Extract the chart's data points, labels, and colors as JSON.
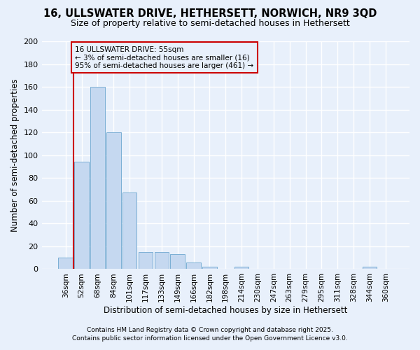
{
  "title": "16, ULLSWATER DRIVE, HETHERSETT, NORWICH, NR9 3QD",
  "subtitle": "Size of property relative to semi-detached houses in Hethersett",
  "xlabel": "Distribution of semi-detached houses by size in Hethersett",
  "ylabel": "Number of semi-detached properties",
  "footnote1": "Contains HM Land Registry data © Crown copyright and database right 2025.",
  "footnote2": "Contains public sector information licensed under the Open Government Licence v3.0.",
  "bar_labels": [
    "36sqm",
    "52sqm",
    "68sqm",
    "84sqm",
    "101sqm",
    "117sqm",
    "133sqm",
    "149sqm",
    "166sqm",
    "182sqm",
    "198sqm",
    "214sqm",
    "230sqm",
    "247sqm",
    "263sqm",
    "279sqm",
    "295sqm",
    "311sqm",
    "328sqm",
    "344sqm",
    "360sqm"
  ],
  "bar_values": [
    10,
    94,
    160,
    120,
    67,
    15,
    15,
    13,
    6,
    2,
    0,
    2,
    0,
    0,
    0,
    0,
    0,
    0,
    0,
    2,
    0
  ],
  "bar_color": "#c5d8f0",
  "bar_edge_color": "#7bafd4",
  "background_color": "#e8f0fb",
  "grid_color": "#ffffff",
  "annotation_box_color": "#cc0000",
  "annotation_title": "16 ULLSWATER DRIVE: 55sqm",
  "annotation_line1": "← 3% of semi-detached houses are smaller (16)",
  "annotation_line2": "95% of semi-detached houses are larger (461) →",
  "ylim": [
    0,
    200
  ],
  "yticks": [
    0,
    20,
    40,
    60,
    80,
    100,
    120,
    140,
    160,
    180,
    200
  ]
}
